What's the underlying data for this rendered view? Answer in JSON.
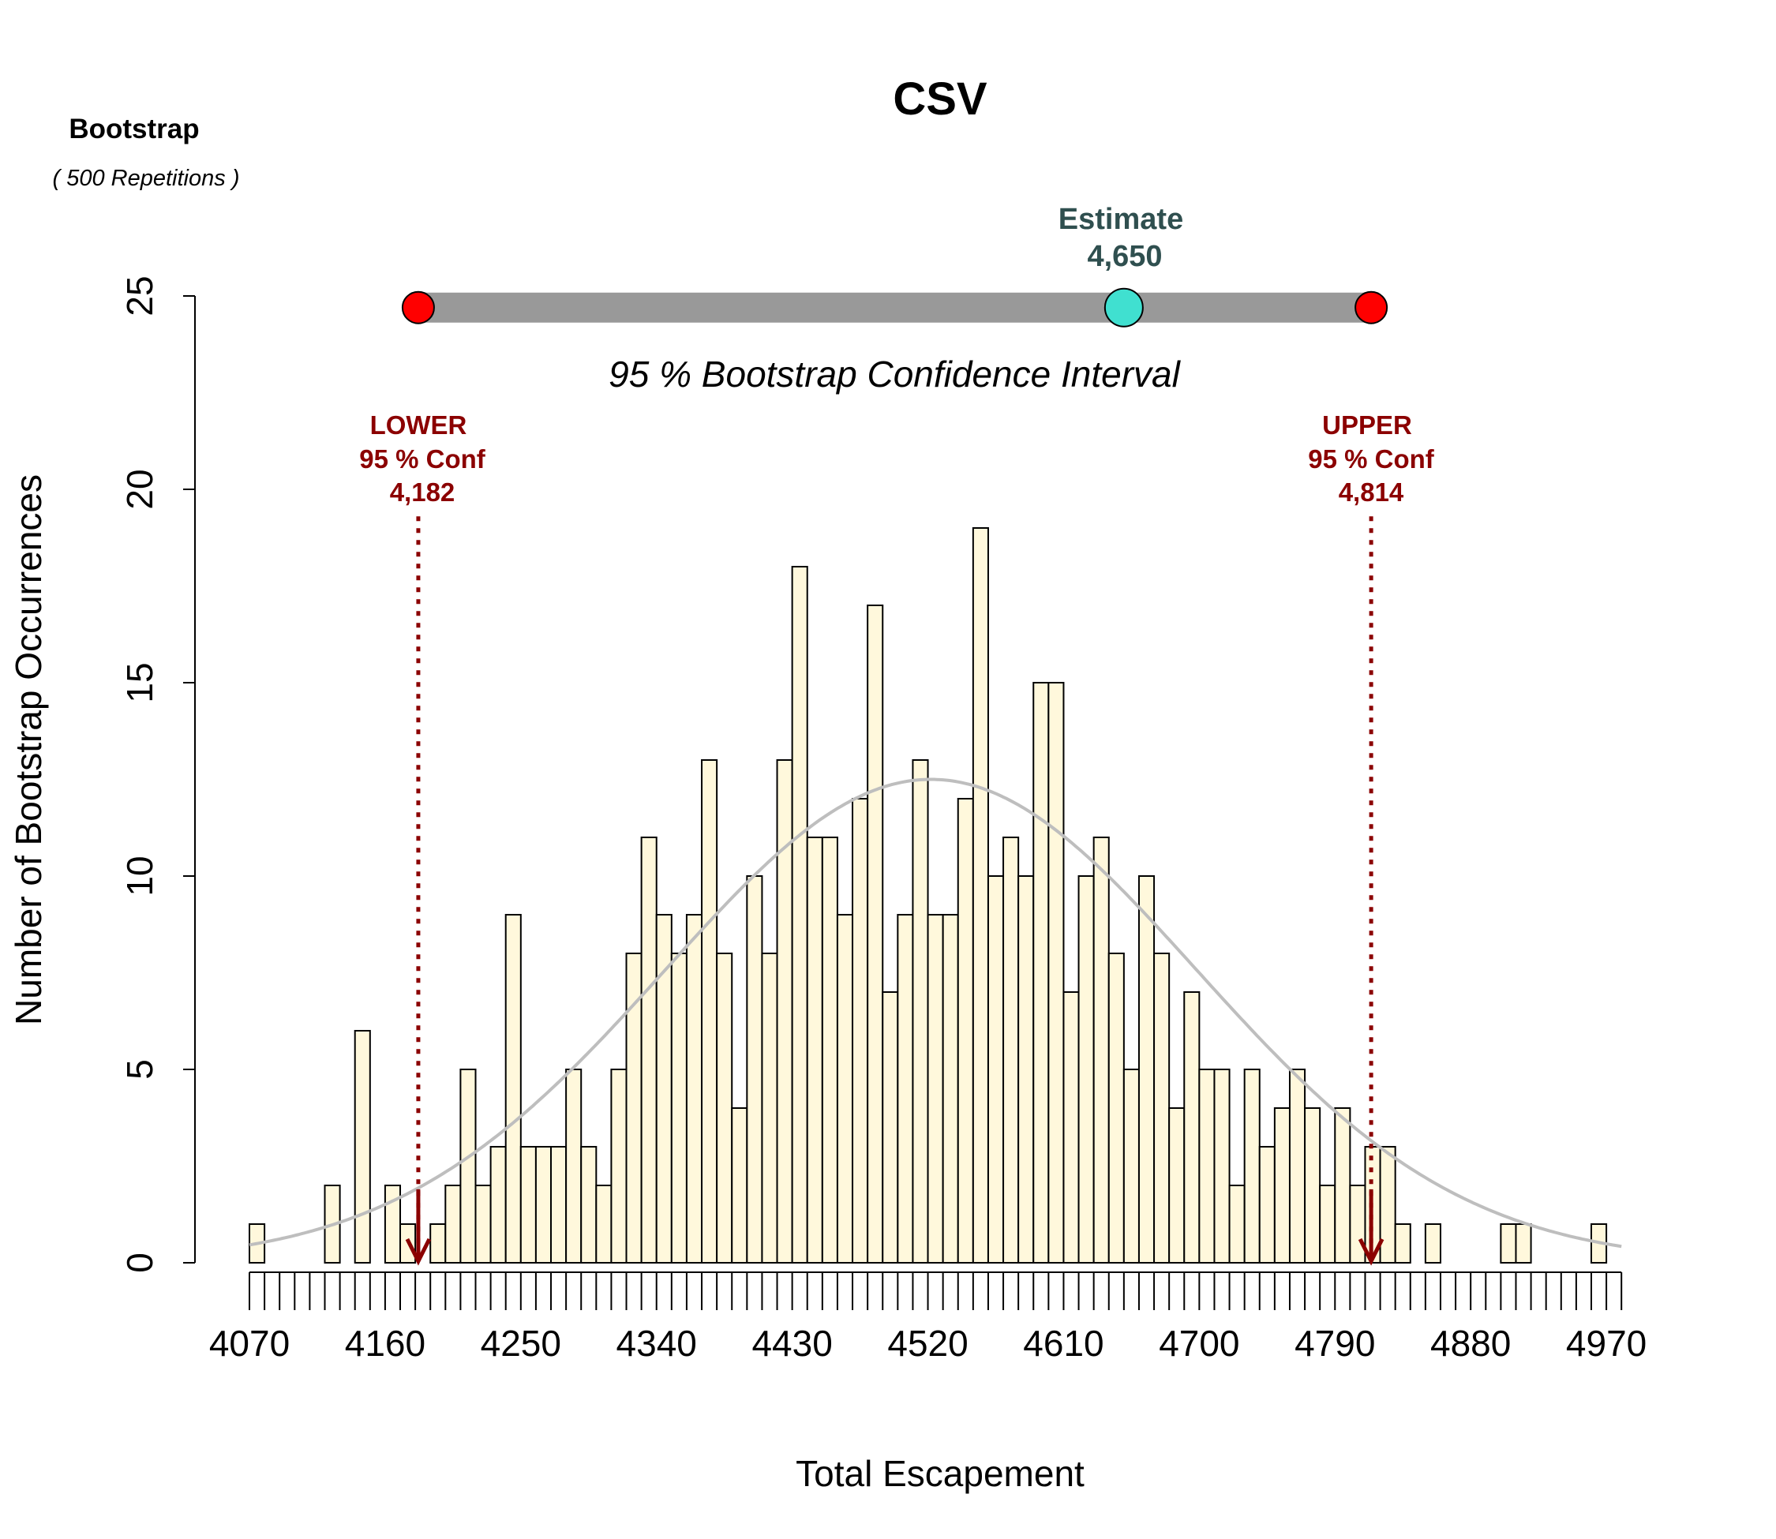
{
  "chart_data": {
    "type": "bar",
    "title": "CSV",
    "header": {
      "line1": "Bootstrap",
      "line2": "(  500  Repetitions )"
    },
    "xlabel": "Total Escapement",
    "ylabel": "Number of Bootstrap Occurrences",
    "xlim": [
      4070,
      4980
    ],
    "ylim": [
      0,
      25
    ],
    "yticks": [
      0,
      5,
      10,
      15,
      20,
      25
    ],
    "xticks": [
      4070,
      4160,
      4250,
      4340,
      4430,
      4520,
      4610,
      4700,
      4790,
      4880,
      4970
    ],
    "bin_start": 4070,
    "bin_width": 10,
    "values": [
      1,
      0,
      0,
      0,
      0,
      2,
      0,
      6,
      0,
      2,
      1,
      0,
      1,
      2,
      5,
      2,
      3,
      9,
      3,
      3,
      3,
      5,
      3,
      2,
      5,
      8,
      11,
      9,
      8,
      9,
      13,
      8,
      4,
      10,
      8,
      13,
      18,
      11,
      11,
      9,
      12,
      17,
      7,
      9,
      13,
      9,
      9,
      12,
      19,
      10,
      11,
      10,
      15,
      15,
      7,
      10,
      11,
      8,
      5,
      10,
      8,
      4,
      7,
      5,
      5,
      2,
      5,
      3,
      4,
      5,
      4,
      2,
      4,
      2,
      3,
      3,
      1,
      0,
      1,
      0,
      0,
      0,
      0,
      1,
      1,
      0,
      0,
      0,
      0,
      1
    ],
    "normal_curve": {
      "mean": 4522,
      "sd": 176,
      "peak": 12.5,
      "color": "#BEBEBE"
    },
    "bar_fill": "#FFF8DC",
    "ci_bar_color": "#999999",
    "ci_endpoint_color": "#FF0000",
    "estimate_color": "#40E0D0",
    "conf_color": "#8B0000",
    "estimate": {
      "label": "Estimate",
      "value": 4650,
      "value_text": "4,650"
    },
    "ci_label": "95 % Bootstrap Confidence Interval",
    "lower": {
      "label": "LOWER",
      "conf": "95 % Conf",
      "value": 4182,
      "value_text": "4,182"
    },
    "upper": {
      "label": "UPPER",
      "conf": "95 % Conf",
      "value": 4814,
      "value_text": "4,814"
    },
    "ci_level_y": 24.7,
    "conf_line_top_y": 19.3
  }
}
